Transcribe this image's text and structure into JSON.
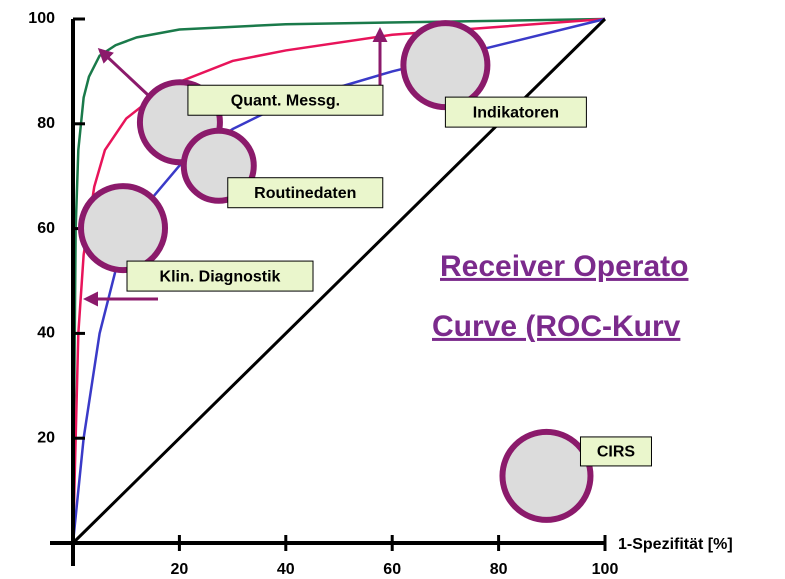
{
  "chart_data": {
    "type": "line",
    "title": [
      "Receiver Operato",
      "Curve (ROC-Kurv"
    ],
    "x_label": "1-Spezifität [%]",
    "xlim": [
      0,
      100
    ],
    "ylim": [
      0,
      100
    ],
    "xticks": [
      20,
      40,
      60,
      80,
      100
    ],
    "yticks": [
      20,
      40,
      60,
      80,
      100
    ],
    "series": [
      {
        "color": "#1a7a4a",
        "x": [
          0,
          0.5,
          1,
          2,
          3,
          5,
          8,
          12,
          20,
          40,
          70,
          100
        ],
        "values": [
          0,
          60,
          75,
          85,
          89,
          93,
          95,
          96.5,
          98,
          99,
          99.5,
          100
        ]
      },
      {
        "color": "#e8145a",
        "x": [
          0,
          1,
          2,
          4,
          6,
          10,
          15,
          20,
          30,
          40,
          60,
          80,
          100
        ],
        "values": [
          0,
          40,
          55,
          68,
          75,
          81,
          85,
          88,
          92,
          94,
          97,
          98.5,
          100
        ]
      },
      {
        "color": "#3a3ac8",
        "x": [
          0,
          2,
          5,
          8,
          10,
          15,
          20,
          30,
          40,
          50,
          60,
          80,
          100
        ],
        "values": [
          0,
          20,
          40,
          52,
          57,
          66,
          72,
          79,
          84,
          87,
          90,
          95,
          100
        ]
      },
      {
        "color": "#000000",
        "x": [
          0,
          100
        ],
        "values": [
          0,
          100
        ]
      }
    ],
    "bubbles": {
      "color": "#8b1a6b",
      "labels": [
        "Quant. Messg.",
        "Routinedaten",
        "Klin. Diagnostik",
        "Indikatoren",
        "CIRS"
      ],
      "x": [
        20.1,
        27.4,
        9.4,
        70,
        89
      ],
      "values": [
        80.3,
        72,
        60.1,
        91.2,
        12.8
      ],
      "sizes": [
        40,
        35,
        42,
        42,
        44
      ]
    }
  }
}
